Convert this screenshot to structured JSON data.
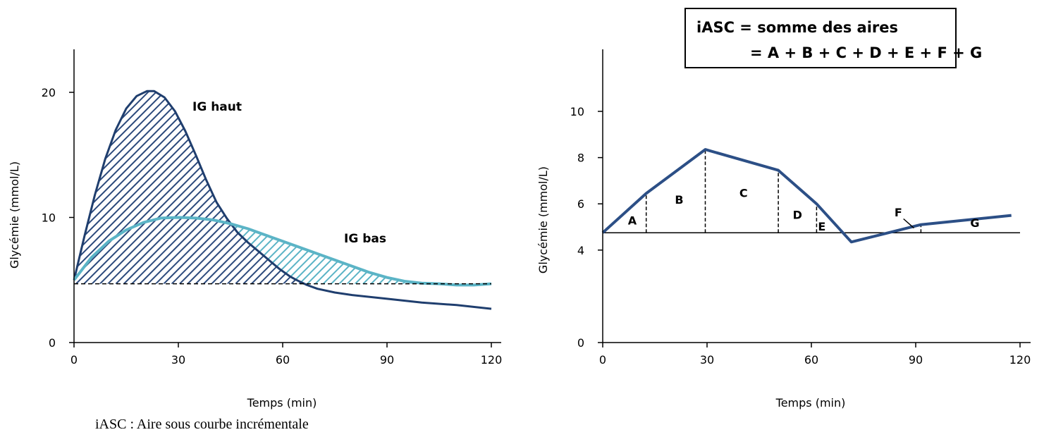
{
  "caption": "iASC : Aire sous courbe incrémentale",
  "colors": {
    "dark": "#1f3e6e",
    "light": "#5bb4c6",
    "hatch_dark": "#2c4a7c",
    "hatch_light": "#5bb4c6"
  },
  "chart_data": [
    {
      "type": "line",
      "title": "",
      "xlabel": "Temps (min)",
      "ylabel": "Glycémie (mmol/L)",
      "xlim": [
        0,
        120
      ],
      "ylim": [
        0,
        24
      ],
      "xticks": [
        0,
        30,
        60,
        90,
        120
      ],
      "yticks": [
        0,
        10,
        20
      ],
      "baseline": 4.7,
      "grid": false,
      "series": [
        {
          "name": "IG haut",
          "color": "#1f3e6e",
          "hatched": true,
          "x": [
            0,
            3,
            6,
            9,
            12,
            15,
            18,
            21,
            23,
            26,
            29,
            32,
            35,
            38,
            41,
            44,
            47,
            50,
            53,
            56,
            59,
            62,
            64,
            67,
            70,
            75,
            80,
            90,
            100,
            110,
            120
          ],
          "y": [
            5.0,
            8.5,
            11.8,
            14.7,
            17.0,
            18.7,
            19.7,
            20.1,
            20.1,
            19.6,
            18.5,
            16.9,
            15.0,
            13.0,
            11.2,
            9.9,
            8.8,
            8.0,
            7.3,
            6.6,
            5.9,
            5.3,
            5.0,
            4.6,
            4.3,
            4.0,
            3.8,
            3.5,
            3.2,
            3.0,
            2.7
          ]
        },
        {
          "name": "IG bas",
          "color": "#5bb4c6",
          "hatched": true,
          "x": [
            0,
            5,
            10,
            15,
            20,
            25,
            30,
            35,
            40,
            45,
            50,
            55,
            60,
            65,
            70,
            75,
            80,
            85,
            90,
            95,
            100,
            105,
            110,
            115,
            120
          ],
          "y": [
            5.0,
            6.8,
            8.1,
            9.0,
            9.6,
            9.95,
            10.0,
            9.95,
            9.8,
            9.5,
            9.1,
            8.6,
            8.1,
            7.6,
            7.1,
            6.6,
            6.1,
            5.6,
            5.2,
            4.9,
            4.75,
            4.7,
            4.6,
            4.6,
            4.7
          ]
        }
      ]
    },
    {
      "type": "line",
      "title": "",
      "xlabel": "Temps (min)",
      "ylabel": "Glycémie (mmol/L)",
      "xlim": [
        0,
        120
      ],
      "ylim": [
        0,
        12
      ],
      "xticks": [
        0,
        30,
        60,
        90,
        120
      ],
      "yticks": [
        0,
        4,
        6,
        8,
        10
      ],
      "baseline": 4.75,
      "grid": false,
      "formula": {
        "line1": "iASC = somme des aires",
        "line2": "= A + B + C + D + E + F + G"
      },
      "series": [
        {
          "name": "",
          "color": "#2c4f86",
          "x": [
            0,
            12.5,
            29.5,
            50.5,
            61.5,
            71.5,
            91.5,
            117.5
          ],
          "y": [
            4.75,
            6.45,
            8.35,
            7.45,
            6.0,
            4.35,
            5.1,
            5.5
          ]
        }
      ],
      "dividers": [
        12.5,
        29.5,
        50.5,
        61.5,
        91.5
      ],
      "areas": [
        {
          "label": "A",
          "x": 8.5,
          "y": 5.1
        },
        {
          "label": "B",
          "x": 22,
          "y": 6.0
        },
        {
          "label": "C",
          "x": 40.5,
          "y": 6.3
        },
        {
          "label": "D",
          "x": 56,
          "y": 5.35
        },
        {
          "label": "E",
          "x": 63,
          "y": 4.85
        },
        {
          "label": "F",
          "x": 85,
          "y": 5.45
        },
        {
          "label": "G",
          "x": 107,
          "y": 5.0
        }
      ]
    }
  ]
}
